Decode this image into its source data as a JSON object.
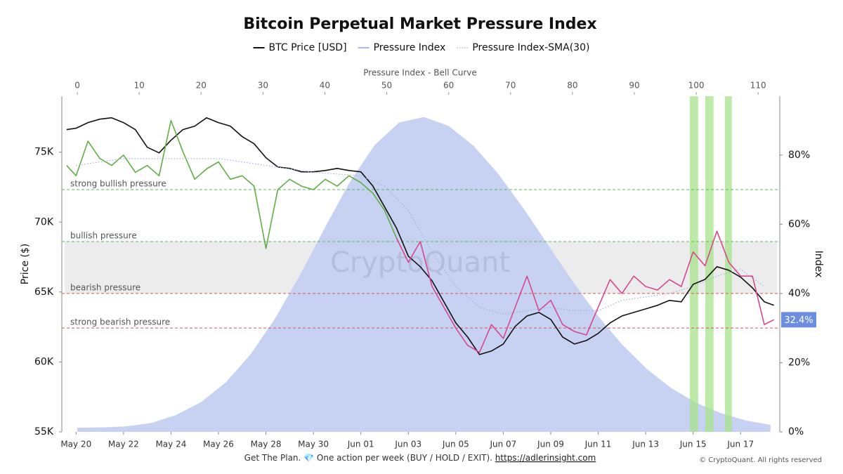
{
  "chart_data": {
    "type": "line",
    "title": "Bitcoin Perpetual Market Pressure Index",
    "legend": "top",
    "ylabel": "Price ($)",
    "y2label": "Index",
    "x2label": "Pressure Index - Bell Curve",
    "watermark": "CryptoQuant",
    "grid": false,
    "xlim": [
      -0.6,
      29.65
    ],
    "xticks": [
      {
        "value": 0,
        "label": "May 20"
      },
      {
        "value": 2,
        "label": "May 22"
      },
      {
        "value": 4,
        "label": "May 24"
      },
      {
        "value": 6,
        "label": "May 26"
      },
      {
        "value": 8,
        "label": "May 28"
      },
      {
        "value": 10,
        "label": "May 30"
      },
      {
        "value": 12,
        "label": "Jun 01"
      },
      {
        "value": 14,
        "label": "Jun 03"
      },
      {
        "value": 16,
        "label": "Jun 05"
      },
      {
        "value": 18,
        "label": "Jun 07"
      },
      {
        "value": 20,
        "label": "Jun 09"
      },
      {
        "value": 22,
        "label": "Jun 11"
      },
      {
        "value": 24,
        "label": "Jun 13"
      },
      {
        "value": 26,
        "label": "Jun 15"
      },
      {
        "value": 28,
        "label": "Jun 17"
      }
    ],
    "ylim": [
      55000,
      79000
    ],
    "yticks": [
      {
        "value": 55000,
        "label": "55K"
      },
      {
        "value": 60000,
        "label": "60K"
      },
      {
        "value": 65000,
        "label": "65K"
      },
      {
        "value": 70000,
        "label": "70K"
      },
      {
        "value": 75000,
        "label": "75K"
      }
    ],
    "y2lim": [
      0,
      97
    ],
    "y2ticks": [
      {
        "value": 0,
        "label": "0%"
      },
      {
        "value": 20,
        "label": "20%"
      },
      {
        "value": 40,
        "label": "40%"
      },
      {
        "value": 60,
        "label": "60%"
      },
      {
        "value": 80,
        "label": "80%"
      }
    ],
    "x2lim": [
      -2.5,
      113.5
    ],
    "x2ticks": [
      0,
      10,
      20,
      30,
      40,
      50,
      60,
      70,
      80,
      90,
      100,
      110
    ],
    "x": [
      -0.4,
      0,
      0.5,
      1,
      1.5,
      2,
      2.5,
      3,
      3.5,
      4,
      4.5,
      5,
      5.5,
      6,
      6.5,
      7,
      7.5,
      8,
      8.5,
      9,
      9.5,
      10,
      10.5,
      11,
      11.5,
      12,
      12.5,
      13,
      13.5,
      14,
      14.5,
      15,
      15.5,
      16,
      16.5,
      17,
      17.5,
      18,
      18.5,
      19,
      19.5,
      20,
      20.5,
      21,
      21.5,
      22,
      22.5,
      23,
      23.5,
      24,
      24.5,
      25,
      25.5,
      26,
      26.5,
      27,
      27.5,
      28,
      28.5,
      29,
      29.4
    ],
    "series": [
      {
        "name": "BTC Price [USD]",
        "color": "#111111",
        "values": [
          76610,
          76710,
          77110,
          77360,
          77460,
          77110,
          76610,
          75350,
          74950,
          75850,
          76610,
          76860,
          77460,
          77110,
          76860,
          76110,
          75600,
          74600,
          73940,
          73840,
          73590,
          73590,
          73690,
          73840,
          73690,
          73590,
          72590,
          71080,
          69570,
          67560,
          66810,
          65800,
          64300,
          62790,
          61780,
          60530,
          60780,
          61280,
          62540,
          63290,
          63540,
          63040,
          61780,
          61280,
          61530,
          62040,
          62790,
          63290,
          63540,
          63790,
          64050,
          64400,
          64300,
          65550,
          65900,
          66810,
          66560,
          66060,
          65300,
          64300,
          64050
        ]
      },
      {
        "name": "Pressure Index",
        "color": "#a9b9e8",
        "axis": "y2",
        "above_color": "#5fae45",
        "below_color": "#d6478f",
        "value_label_color": "#6d8de0",
        "values": [
          77,
          74,
          84,
          79,
          77,
          80,
          75,
          77,
          74,
          90,
          81,
          73,
          76,
          78,
          73,
          74,
          71,
          53,
          70,
          73,
          71,
          70,
          73,
          71,
          74,
          72,
          69,
          64,
          56,
          49,
          55,
          42,
          36,
          30,
          25,
          23,
          31,
          27,
          36,
          45,
          35,
          38,
          31,
          29,
          28,
          36,
          44,
          40,
          45,
          42,
          41,
          44,
          42,
          52,
          48,
          58,
          49,
          45,
          45,
          31,
          32.4
        ],
        "value_labels": [
          null,
          null,
          null,
          null,
          null,
          null,
          null,
          null,
          null,
          null,
          null,
          null,
          null,
          null,
          null,
          null,
          null,
          null,
          null,
          null,
          null,
          null,
          null,
          null,
          null,
          null,
          null,
          null,
          null,
          null,
          null,
          null,
          null,
          null,
          null,
          null,
          null,
          null,
          null,
          null,
          null,
          null,
          null,
          null,
          null,
          null,
          null,
          null,
          null,
          null,
          null,
          null,
          null,
          null,
          null,
          null,
          null,
          null,
          null,
          null,
          "32.4%"
        ]
      },
      {
        "name": "Pressure Index-SMA(30)",
        "color": "#9fb0dc",
        "axis": "y2",
        "dash": "dotted",
        "x": [
          0,
          2,
          4,
          6,
          8,
          10,
          12,
          13,
          14,
          15,
          16,
          17,
          18,
          19,
          20,
          21,
          22,
          23,
          24,
          25,
          26,
          27,
          28,
          29
        ],
        "values": [
          77,
          79,
          79,
          79,
          77,
          75,
          74,
          71,
          64,
          52,
          42,
          36,
          34,
          35,
          36,
          35,
          35,
          38,
          39,
          40,
          42,
          45,
          47,
          42
        ]
      }
    ],
    "bell_curve": {
      "color": "#c7d1f2",
      "axis": "y2",
      "x": [
        0,
        4,
        8,
        12,
        16,
        20,
        24,
        28,
        32,
        36,
        40,
        44,
        48,
        52,
        56,
        60,
        64,
        68,
        72,
        76,
        80,
        84,
        88,
        92,
        96,
        100,
        104,
        108,
        112
      ],
      "values": [
        1.2,
        1.3,
        1.6,
        2.6,
        4.9,
        8.6,
        14.3,
        22.4,
        32.9,
        45.4,
        59,
        72.1,
        82.8,
        89.4,
        91,
        88.4,
        82.7,
        74.6,
        64.8,
        54.2,
        43.6,
        33.8,
        25.3,
        18.2,
        12.6,
        8.4,
        5.4,
        3.3,
        2
      ]
    },
    "levels": [
      {
        "name": "strong bullish pressure",
        "value": 70,
        "color": "#5cb85c"
      },
      {
        "name": "bullish pressure",
        "value": 55,
        "color": "#5cb85c"
      },
      {
        "name": "bearish pressure",
        "value": 40,
        "color": "#d9534f"
      },
      {
        "name": "strong bearish pressure",
        "value": 30,
        "color": "#d9534f"
      }
    ],
    "band_color": "#ececec",
    "highlights": {
      "color": "#a8e38c",
      "ranges": [
        [
          25.86,
          26.21
        ],
        [
          26.51,
          26.86
        ],
        [
          27.34,
          27.63
        ]
      ]
    }
  },
  "footer": {
    "text": "Get The Plan. 💎 One action per week (BUY / HOLD / EXIT).",
    "link": "https://adlerinsight.com",
    "copyright": "© CryptoQuant. All rights reserved"
  }
}
